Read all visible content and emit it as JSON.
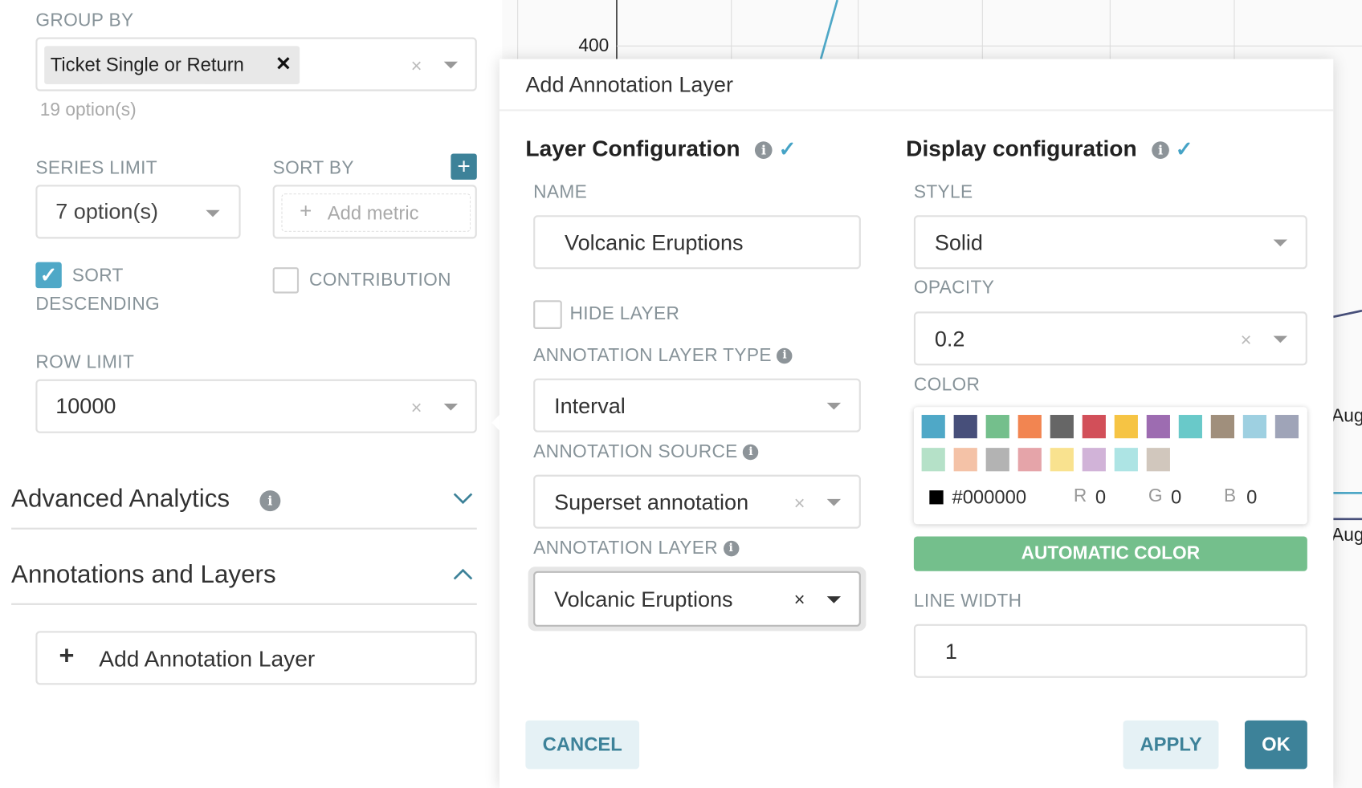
{
  "left_panel": {
    "group_by": {
      "label": "GROUP BY",
      "tag": "Ticket Single or Return",
      "options_count": "19 option(s)"
    },
    "series_limit": {
      "label": "SERIES LIMIT",
      "value": "7 option(s)"
    },
    "sort_by": {
      "label": "SORT BY",
      "placeholder": "Add metric"
    },
    "sort_descending": {
      "label_line1": "SORT",
      "label_line2": "DESCENDING",
      "checked": true
    },
    "contribution": {
      "label": "CONTRIBUTION",
      "checked": false
    },
    "row_limit": {
      "label": "ROW LIMIT",
      "value": "10000"
    },
    "advanced_analytics": "Advanced Analytics",
    "annotations_and_layers": "Annotations and Layers",
    "add_annotation_layer": "Add Annotation Layer"
  },
  "chart_bg": {
    "y_tick": "400",
    "x_ticks": [
      "Aug",
      "Aug"
    ]
  },
  "modal": {
    "title": "Add Annotation Layer",
    "layer_config": {
      "heading": "Layer Configuration",
      "name_label": "NAME",
      "name_value": "Volcanic Eruptions",
      "hide_layer": "HIDE LAYER",
      "type_label": "ANNOTATION LAYER TYPE",
      "type_value": "Interval",
      "source_label": "ANNOTATION SOURCE",
      "source_value": "Superset annotation",
      "layer_label": "ANNOTATION LAYER",
      "layer_value": "Volcanic Eruptions"
    },
    "display_config": {
      "heading": "Display configuration",
      "style_label": "STYLE",
      "style_value": "Solid",
      "opacity_label": "OPACITY",
      "opacity_value": "0.2",
      "color_label": "COLOR",
      "swatches": [
        "#4fa8c7",
        "#474f7a",
        "#74bf8c",
        "#f28551",
        "#666666",
        "#d24f59",
        "#f6c444",
        "#9d6cb1",
        "#69c9c9",
        "#a08f7c",
        "#9ed0e1",
        "#9fa4b8",
        "#b5e1c8",
        "#f4c2a7",
        "#b3b3b3",
        "#e5a4a9",
        "#f9e28f",
        "#d1b3d8",
        "#ade4e4",
        "#d1c7bd"
      ],
      "hex": "#000000",
      "r_label": "R",
      "r": "0",
      "g_label": "G",
      "g": "0",
      "b_label": "B",
      "b": "0",
      "automatic_color": "AUTOMATIC COLOR",
      "line_width_label": "LINE WIDTH",
      "line_width_value": "1"
    },
    "cancel": "CANCEL",
    "apply": "APPLY",
    "ok": "OK"
  },
  "colors": {
    "primary": "#3d8299",
    "success": "#74bf8c",
    "info": "#45a3c6"
  }
}
